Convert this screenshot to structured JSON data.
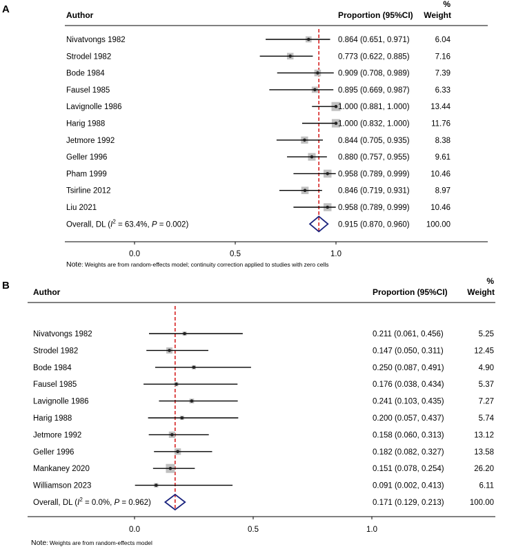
{
  "chart_data": [
    {
      "type": "forest",
      "panel": "A",
      "headers": {
        "author": "Author",
        "proportion": "Proportion (95%CI)",
        "weight_top": "%",
        "weight_bottom": "Weight"
      },
      "studies": [
        {
          "author": "Nivatvongs 1982",
          "est": 0.864,
          "lo": 0.651,
          "hi": 0.971,
          "ci_text": "0.864 (0.651, 0.971)",
          "weight": 6.04,
          "weight_text": "6.04"
        },
        {
          "author": "Strodel 1982",
          "est": 0.773,
          "lo": 0.622,
          "hi": 0.885,
          "ci_text": "0.773 (0.622, 0.885)",
          "weight": 7.16,
          "weight_text": "7.16"
        },
        {
          "author": "Bode 1984",
          "est": 0.909,
          "lo": 0.708,
          "hi": 0.989,
          "ci_text": "0.909 (0.708, 0.989)",
          "weight": 7.39,
          "weight_text": "7.39"
        },
        {
          "author": "Fausel 1985",
          "est": 0.895,
          "lo": 0.669,
          "hi": 0.987,
          "ci_text": "0.895 (0.669, 0.987)",
          "weight": 6.33,
          "weight_text": "6.33"
        },
        {
          "author": "Lavignolle 1986",
          "est": 1.0,
          "lo": 0.881,
          "hi": 1.0,
          "ci_text": "1.000 (0.881, 1.000)",
          "weight": 13.44,
          "weight_text": "13.44"
        },
        {
          "author": "Harig 1988",
          "est": 1.0,
          "lo": 0.832,
          "hi": 1.0,
          "ci_text": "1.000 (0.832, 1.000)",
          "weight": 11.76,
          "weight_text": "11.76"
        },
        {
          "author": "Jetmore 1992",
          "est": 0.844,
          "lo": 0.705,
          "hi": 0.935,
          "ci_text": "0.844 (0.705, 0.935)",
          "weight": 8.38,
          "weight_text": "8.38"
        },
        {
          "author": "Geller 1996",
          "est": 0.88,
          "lo": 0.757,
          "hi": 0.955,
          "ci_text": "0.880 (0.757, 0.955)",
          "weight": 9.61,
          "weight_text": "9.61"
        },
        {
          "author": "Pham 1999",
          "est": 0.958,
          "lo": 0.789,
          "hi": 0.999,
          "ci_text": "0.958 (0.789, 0.999)",
          "weight": 10.46,
          "weight_text": "10.46"
        },
        {
          "author": "Tsirline 2012",
          "est": 0.846,
          "lo": 0.719,
          "hi": 0.931,
          "ci_text": "0.846 (0.719, 0.931)",
          "weight": 8.97,
          "weight_text": "8.97"
        },
        {
          "author": "Liu 2021",
          "est": 0.958,
          "lo": 0.789,
          "hi": 0.999,
          "ci_text": "0.958 (0.789, 0.999)",
          "weight": 10.46,
          "weight_text": "10.46"
        }
      ],
      "overall": {
        "label_prefix": "Overall, DL (",
        "i2_symbol": "I",
        "i2_sup": "2",
        "i2_text": " = 63.4%, ",
        "p_symbol": "P",
        "p_text": " = 0.002)",
        "est": 0.915,
        "lo": 0.87,
        "hi": 0.96,
        "ci_text": "0.915 (0.870, 0.960)",
        "weight_text": "100.00"
      },
      "xticks": [
        0.0,
        0.5,
        1.0
      ],
      "xtick_labels": [
        "0.0",
        "0.5",
        "1.0"
      ],
      "note_label": "Note",
      "note_text": ": Weights are from random-effects model; continuity correction applied to studies with zero cells"
    },
    {
      "type": "forest",
      "panel": "B",
      "headers": {
        "author": "Author",
        "proportion": "Proportion (95%CI)",
        "weight_top": "%",
        "weight_bottom": "Weight"
      },
      "studies": [
        {
          "author": "Nivatvongs 1982",
          "est": 0.211,
          "lo": 0.061,
          "hi": 0.456,
          "ci_text": "0.211 (0.061, 0.456)",
          "weight": 5.25,
          "weight_text": "5.25"
        },
        {
          "author": "Strodel 1982",
          "est": 0.147,
          "lo": 0.05,
          "hi": 0.311,
          "ci_text": "0.147 (0.050, 0.311)",
          "weight": 12.45,
          "weight_text": "12.45"
        },
        {
          "author": "Bode 1984",
          "est": 0.25,
          "lo": 0.087,
          "hi": 0.491,
          "ci_text": "0.250 (0.087, 0.491)",
          "weight": 4.9,
          "weight_text": "4.90"
        },
        {
          "author": "Fausel 1985",
          "est": 0.176,
          "lo": 0.038,
          "hi": 0.434,
          "ci_text": "0.176 (0.038, 0.434)",
          "weight": 5.37,
          "weight_text": "5.37"
        },
        {
          "author": "Lavignolle 1986",
          "est": 0.241,
          "lo": 0.103,
          "hi": 0.435,
          "ci_text": "0.241 (0.103, 0.435)",
          "weight": 7.27,
          "weight_text": "7.27"
        },
        {
          "author": "Harig 1988",
          "est": 0.2,
          "lo": 0.057,
          "hi": 0.437,
          "ci_text": "0.200 (0.057, 0.437)",
          "weight": 5.74,
          "weight_text": "5.74"
        },
        {
          "author": "Jetmore 1992",
          "est": 0.158,
          "lo": 0.06,
          "hi": 0.313,
          "ci_text": "0.158 (0.060, 0.313)",
          "weight": 13.12,
          "weight_text": "13.12"
        },
        {
          "author": "Geller 1996",
          "est": 0.182,
          "lo": 0.082,
          "hi": 0.327,
          "ci_text": "0.182 (0.082, 0.327)",
          "weight": 13.58,
          "weight_text": "13.58"
        },
        {
          "author": "Mankaney 2020",
          "est": 0.151,
          "lo": 0.078,
          "hi": 0.254,
          "ci_text": "0.151 (0.078, 0.254)",
          "weight": 26.2,
          "weight_text": "26.20"
        },
        {
          "author": "Williamson 2023",
          "est": 0.091,
          "lo": 0.002,
          "hi": 0.413,
          "ci_text": "0.091 (0.002, 0.413)",
          "weight": 6.11,
          "weight_text": "6.11"
        }
      ],
      "overall": {
        "label_prefix": "Overall, DL (",
        "i2_symbol": "I",
        "i2_sup": "2",
        "i2_text": " = 0.0%, ",
        "p_symbol": "P",
        "p_text": " = 0.962)",
        "est": 0.171,
        "lo": 0.129,
        "hi": 0.213,
        "ci_text": "0.171 (0.129, 0.213)",
        "weight_text": "100.00"
      },
      "xticks": [
        0.0,
        0.5,
        1.0
      ],
      "xtick_labels": [
        "0.0",
        "0.5",
        "1.0"
      ],
      "note_label": "Note",
      "note_text": ": Weights are from random-effects model"
    }
  ],
  "colors": {
    "ci_line": "#000000",
    "weight_box": "#c0c0c0",
    "ref_line": "#d62020",
    "diamond": "#1a237e"
  }
}
